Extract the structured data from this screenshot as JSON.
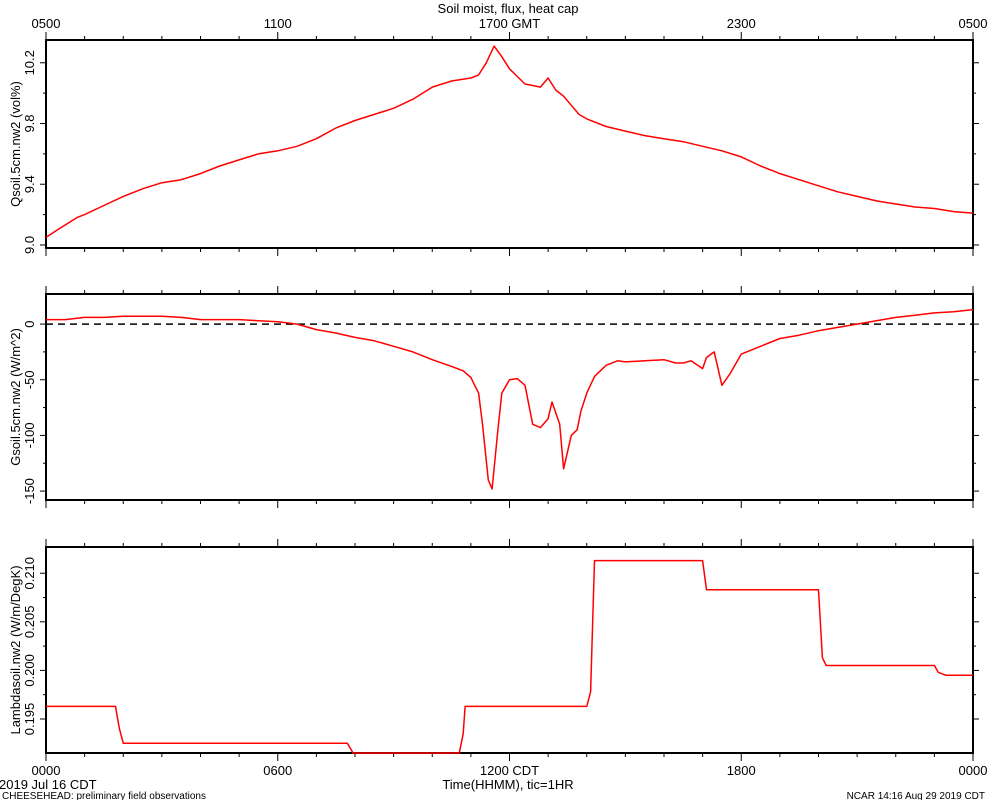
{
  "title": "Soil moist, flux, heat cap",
  "footer": {
    "left_top": "2019 Jul 16 CDT",
    "left_bottom": "CHEESEHEAD: preliminary field observations",
    "right": "NCAR 14:16 Aug 29 2019 CDT"
  },
  "top_axis": {
    "tick_labels": [
      "0500",
      "1100",
      "1700 GMT",
      "2300",
      "0500"
    ]
  },
  "bottom_axis": {
    "label": "Time(HHMM), tic=1HR",
    "tick_labels": [
      "0000",
      "0600",
      "1200 CDT",
      "1800",
      "0000"
    ]
  },
  "colors": {
    "series": "#ff0000",
    "axes": "#000000"
  },
  "chart_data": [
    {
      "type": "line",
      "ylabel": "Qsoil.5cm.nw2 (vol%)",
      "ylim": [
        8.98,
        10.35
      ],
      "yticks": [
        9.0,
        9.4,
        9.8,
        10.2
      ],
      "ytick_labels": [
        "9.0",
        "9.4",
        "9.8",
        "10.2"
      ],
      "xlim": [
        0,
        24
      ],
      "series": [
        {
          "x": [
            0,
            0.3,
            0.8,
            1,
            1.5,
            2,
            2.5,
            3,
            3.5,
            4,
            4.5,
            5,
            5.5,
            6,
            6.5,
            7,
            7.5,
            8,
            8.5,
            9,
            9.5,
            10,
            10.5,
            11,
            11.2,
            11.4,
            11.6,
            11.8,
            12,
            12.2,
            12.4,
            12.6,
            12.8,
            13,
            13.2,
            13.4,
            13.6,
            13.8,
            14,
            14.5,
            15,
            15.5,
            16,
            16.5,
            17,
            17.5,
            18,
            18.5,
            19,
            19.5,
            20,
            20.5,
            21,
            21.5,
            22,
            22.5,
            23,
            23.5,
            24
          ],
          "y": [
            9.05,
            9.1,
            9.18,
            9.2,
            9.26,
            9.32,
            9.37,
            9.41,
            9.43,
            9.47,
            9.52,
            9.56,
            9.6,
            9.62,
            9.65,
            9.7,
            9.77,
            9.82,
            9.86,
            9.9,
            9.96,
            10.04,
            10.08,
            10.1,
            10.12,
            10.2,
            10.31,
            10.24,
            10.16,
            10.11,
            10.06,
            10.05,
            10.04,
            10.1,
            10.02,
            9.98,
            9.92,
            9.86,
            9.83,
            9.78,
            9.75,
            9.72,
            9.7,
            9.68,
            9.65,
            9.62,
            9.58,
            9.52,
            9.47,
            9.43,
            9.39,
            9.35,
            9.32,
            9.29,
            9.27,
            9.25,
            9.24,
            9.22,
            9.21
          ]
        }
      ]
    },
    {
      "type": "line",
      "ylabel": "Gsoil.5cm.nw2 (W/m^2)",
      "ylim": [
        -158,
        27
      ],
      "yticks": [
        -150,
        -100,
        -50,
        0
      ],
      "ytick_labels": [
        "-150",
        "-100",
        "-50",
        "0"
      ],
      "zero_line": 0,
      "xlim": [
        0,
        24
      ],
      "series": [
        {
          "x": [
            0,
            0.5,
            1,
            1.5,
            2,
            2.5,
            3,
            3.5,
            4,
            4.5,
            5,
            5.5,
            6,
            6.5,
            7,
            7.5,
            8,
            8.5,
            9,
            9.5,
            10,
            10.5,
            10.8,
            11,
            11.1,
            11.2,
            11.3,
            11.45,
            11.55,
            11.7,
            11.8,
            12,
            12.2,
            12.4,
            12.6,
            12.8,
            13,
            13.1,
            13.3,
            13.4,
            13.6,
            13.75,
            13.85,
            14,
            14.2,
            14.5,
            14.8,
            15,
            15.5,
            16,
            16.3,
            16.5,
            16.7,
            17,
            17.1,
            17.3,
            17.5,
            17.7,
            18,
            18.5,
            19,
            19.5,
            20,
            20.5,
            21,
            21.5,
            22,
            22.5,
            23,
            23.5,
            24
          ],
          "y": [
            4,
            4,
            6,
            6,
            7,
            7,
            7,
            6,
            4,
            4,
            4,
            3,
            2,
            0,
            -5,
            -8,
            -12,
            -15,
            -20,
            -25,
            -32,
            -38,
            -42,
            -48,
            -55,
            -62,
            -90,
            -140,
            -148,
            -95,
            -62,
            -50,
            -49,
            -55,
            -90,
            -93,
            -85,
            -70,
            -90,
            -130,
            -100,
            -95,
            -78,
            -62,
            -47,
            -37,
            -33,
            -34,
            -33,
            -32,
            -35,
            -35,
            -33,
            -40,
            -30,
            -25,
            -55,
            -45,
            -27,
            -20,
            -13,
            -10,
            -6,
            -3,
            0,
            3,
            6,
            8,
            10,
            11,
            13
          ]
        }
      ]
    },
    {
      "type": "line",
      "ylabel": "Lambdasoil.nw2 (W/m/DegK)",
      "ylim": [
        0.1915,
        0.2127
      ],
      "yticks": [
        0.195,
        0.2,
        0.205,
        0.21
      ],
      "ytick_labels": [
        "0.195",
        "0.200",
        "0.205",
        "0.210"
      ],
      "xlim": [
        0,
        24
      ],
      "series": [
        {
          "x": [
            0,
            1.8,
            1.9,
            2.0,
            7.8,
            7.95,
            10.7,
            10.8,
            10.85,
            14.0,
            14.1,
            14.2,
            17.0,
            17.1,
            20.0,
            20.1,
            20.2,
            23.0,
            23.1,
            23.3,
            24
          ],
          "y": [
            0.1963,
            0.1963,
            0.194,
            0.1925,
            0.1925,
            0.1915,
            0.1915,
            0.1935,
            0.1963,
            0.1963,
            0.1978,
            0.2113,
            0.2113,
            0.2083,
            0.2083,
            0.2013,
            0.2005,
            0.2005,
            0.1998,
            0.1995,
            0.1995
          ]
        }
      ]
    }
  ]
}
